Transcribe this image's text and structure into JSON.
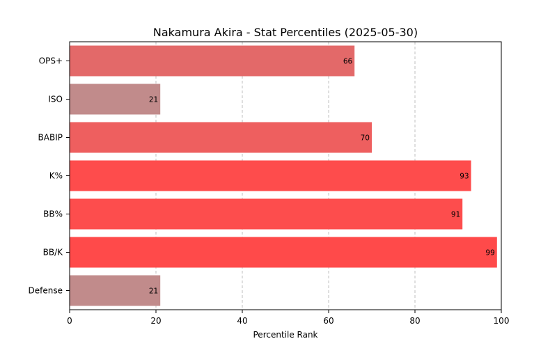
{
  "chart_data": {
    "type": "bar",
    "orientation": "horizontal",
    "title": "Nakamura Akira - Stat Percentiles (2025-05-30)",
    "xlabel": "Percentile Rank",
    "ylabel": "",
    "xlim": [
      0,
      100
    ],
    "xticks": [
      0,
      20,
      40,
      60,
      80,
      100
    ],
    "grid": "vertical-dashed",
    "categories": [
      "OPS+",
      "ISO",
      "BABIP",
      "K%",
      "BB%",
      "BB/K",
      "Defense"
    ],
    "values": [
      66,
      21,
      70,
      93,
      91,
      99,
      21
    ],
    "colors": [
      "#e36969",
      "#c18b8b",
      "#ee5f5f",
      "#fe4c4c",
      "#fd4d4d",
      "#ff4a4a",
      "#c18b8b"
    ]
  }
}
